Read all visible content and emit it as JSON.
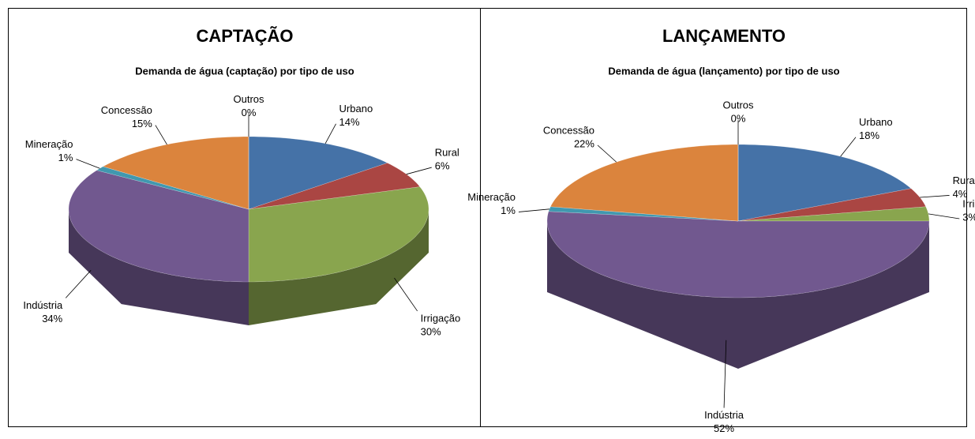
{
  "chart_data": [
    {
      "type": "pie",
      "title": "CAPTAÇÃO",
      "subtitle": "Demanda de água (captação) por tipo de uso",
      "categories": [
        "Urbano",
        "Rural",
        "Irrigação",
        "Indústria",
        "Mineração",
        "Concessão",
        "Outros"
      ],
      "values": [
        14,
        6,
        30,
        34,
        1,
        15,
        0
      ],
      "value_labels": [
        "14%",
        "6%",
        "30%",
        "34%",
        "1%",
        "15%",
        "0%"
      ],
      "colors": [
        "#4572a7",
        "#aa4643",
        "#89a54e",
        "#71588f",
        "#4198af",
        "#db843d",
        "#93a9cf"
      ]
    },
    {
      "type": "pie",
      "title": "LANÇAMENTO",
      "subtitle": "Demanda de água (lançamento) por tipo de uso",
      "categories": [
        "Urbano",
        "Rural",
        "Irrigação",
        "Indústria",
        "Mineração",
        "Concessão",
        "Outros"
      ],
      "values": [
        18,
        4,
        3,
        52,
        1,
        22,
        0
      ],
      "value_labels": [
        "18%",
        "4%",
        "3%",
        "52%",
        "1%",
        "22%",
        "0%"
      ],
      "colors": [
        "#4572a7",
        "#aa4643",
        "#89a54e",
        "#71588f",
        "#4198af",
        "#db843d",
        "#93a9cf"
      ]
    }
  ]
}
